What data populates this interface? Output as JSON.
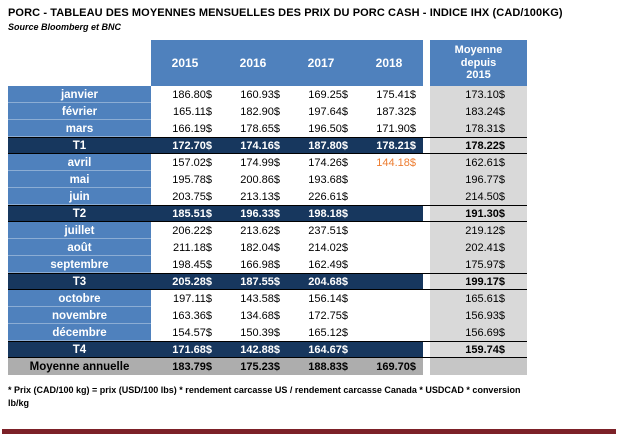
{
  "title": "PORC - TABLEAU DES MOYENNES MENSUELLES DES PRIX DU PORC CASH - INDICE IHX (CAD/100KG)",
  "source": "Source Bloomberg et BNC",
  "footnote": "* Prix (CAD/100 kg) = prix (USD/100 lbs) * rendement carcasse US / rendement carcasse Canada * USDCAD * conversion lb/kg",
  "colors": {
    "header_blue": "#4f81bd",
    "quarter_navy": "#17375e",
    "average_column_gray": "#d9d9d9",
    "annual_row_gray": "#adadad",
    "highlight_orange": "#ed7d31",
    "bottom_bar_maroon": "#7c2128"
  },
  "table": {
    "year_columns": [
      "2015",
      "2016",
      "2017",
      "2018"
    ],
    "avg_header": "Moyenne\ndepuis\n2015",
    "rows": [
      {
        "type": "month",
        "label": "janvier",
        "values": [
          "186.80$",
          "160.93$",
          "169.25$",
          "175.41$"
        ],
        "avg": "173.10$"
      },
      {
        "type": "month",
        "label": "février",
        "values": [
          "165.11$",
          "182.90$",
          "197.64$",
          "187.32$"
        ],
        "avg": "183.24$"
      },
      {
        "type": "month",
        "label": "mars",
        "values": [
          "166.19$",
          "178.65$",
          "196.50$",
          "171.90$"
        ],
        "avg": "178.31$"
      },
      {
        "type": "quarter",
        "label": "T1",
        "values": [
          "172.70$",
          "174.16$",
          "187.80$",
          "178.21$"
        ],
        "avg": "178.22$"
      },
      {
        "type": "month",
        "label": "avril",
        "values": [
          "157.02$",
          "174.99$",
          "174.26$",
          "144.18$"
        ],
        "avg": "162.61$",
        "highlight_col": 3
      },
      {
        "type": "month",
        "label": "mai",
        "values": [
          "195.78$",
          "200.86$",
          "193.68$",
          ""
        ],
        "avg": "196.77$"
      },
      {
        "type": "month",
        "label": "juin",
        "values": [
          "203.75$",
          "213.13$",
          "226.61$",
          ""
        ],
        "avg": "214.50$"
      },
      {
        "type": "quarter",
        "label": "T2",
        "values": [
          "185.51$",
          "196.33$",
          "198.18$",
          ""
        ],
        "avg": "191.30$"
      },
      {
        "type": "month",
        "label": "juillet",
        "values": [
          "206.22$",
          "213.62$",
          "237.51$",
          ""
        ],
        "avg": "219.12$"
      },
      {
        "type": "month",
        "label": "août",
        "values": [
          "211.18$",
          "182.04$",
          "214.02$",
          ""
        ],
        "avg": "202.41$"
      },
      {
        "type": "month",
        "label": "septembre",
        "values": [
          "198.45$",
          "166.98$",
          "162.49$",
          ""
        ],
        "avg": "175.97$"
      },
      {
        "type": "quarter",
        "label": "T3",
        "values": [
          "205.28$",
          "187.55$",
          "204.68$",
          ""
        ],
        "avg": "199.17$"
      },
      {
        "type": "month",
        "label": "octobre",
        "values": [
          "197.11$",
          "143.58$",
          "156.14$",
          ""
        ],
        "avg": "165.61$"
      },
      {
        "type": "month",
        "label": "novembre",
        "values": [
          "163.36$",
          "134.68$",
          "172.75$",
          ""
        ],
        "avg": "156.93$"
      },
      {
        "type": "month",
        "label": "décembre",
        "values": [
          "154.57$",
          "150.39$",
          "165.12$",
          ""
        ],
        "avg": "156.69$"
      },
      {
        "type": "quarter",
        "label": "T4",
        "values": [
          "171.68$",
          "142.88$",
          "164.67$",
          ""
        ],
        "avg": "159.74$"
      },
      {
        "type": "annual",
        "label": "Moyenne annuelle",
        "values": [
          "183.79$",
          "175.23$",
          "188.83$",
          "169.70$"
        ],
        "avg": ""
      }
    ]
  }
}
